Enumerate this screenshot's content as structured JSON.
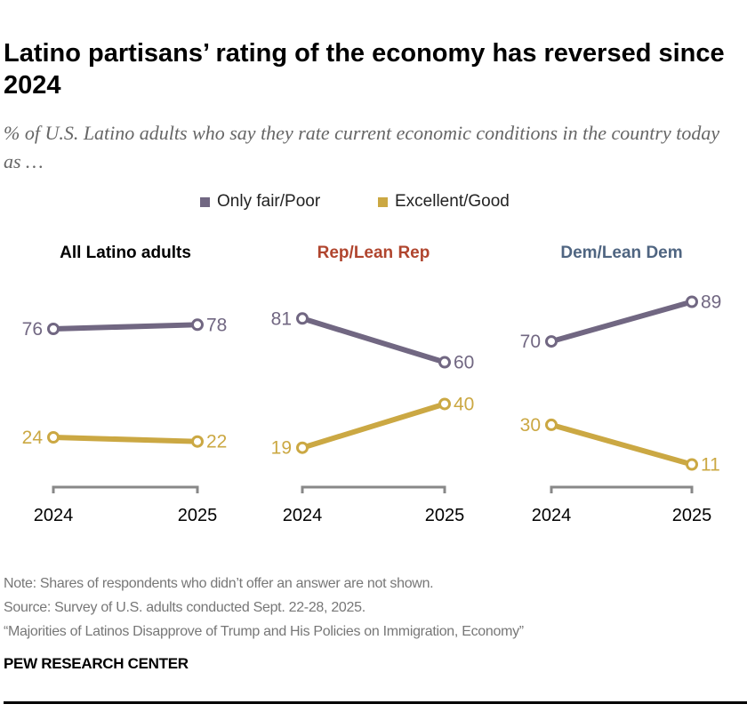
{
  "title": "Latino partisans’ rating of the economy has reversed since 2024",
  "subtitle": "% of U.S. Latino adults who say they rate current economic conditions in the country today as …",
  "legend": [
    {
      "label": "Only fair/Poor",
      "color": "#716782"
    },
    {
      "label": "Excellent/Good",
      "color": "#CBA843"
    }
  ],
  "chart_data": {
    "type": "line",
    "x": [
      "2024",
      "2025"
    ],
    "ylim": [
      0,
      100
    ],
    "grid": false,
    "legend_position": "top",
    "panels": [
      {
        "title": "All Latino adults",
        "title_color": "#000000",
        "series": [
          {
            "name": "Only fair/Poor",
            "values": [
              76,
              78
            ]
          },
          {
            "name": "Excellent/Good",
            "values": [
              24,
              22
            ]
          }
        ]
      },
      {
        "title": "Rep/Lean Rep",
        "title_color": "#B0452E",
        "series": [
          {
            "name": "Only fair/Poor",
            "values": [
              81,
              60
            ]
          },
          {
            "name": "Excellent/Good",
            "values": [
              19,
              40
            ]
          }
        ]
      },
      {
        "title": "Dem/Lean Dem",
        "title_color": "#4F6581",
        "series": [
          {
            "name": "Only fair/Poor",
            "values": [
              70,
              89
            ]
          },
          {
            "name": "Excellent/Good",
            "values": [
              30,
              11
            ]
          }
        ]
      }
    ]
  },
  "footer": {
    "note": "Note: Shares of respondents who didn’t offer an answer are not shown.",
    "source": "Source: Survey of U.S. adults conducted Sept. 22-28, 2025.",
    "report": "“Majorities of Latinos Disapprove of Trump and His Policies on Immigration, Economy”",
    "brand": "PEW RESEARCH CENTER"
  }
}
